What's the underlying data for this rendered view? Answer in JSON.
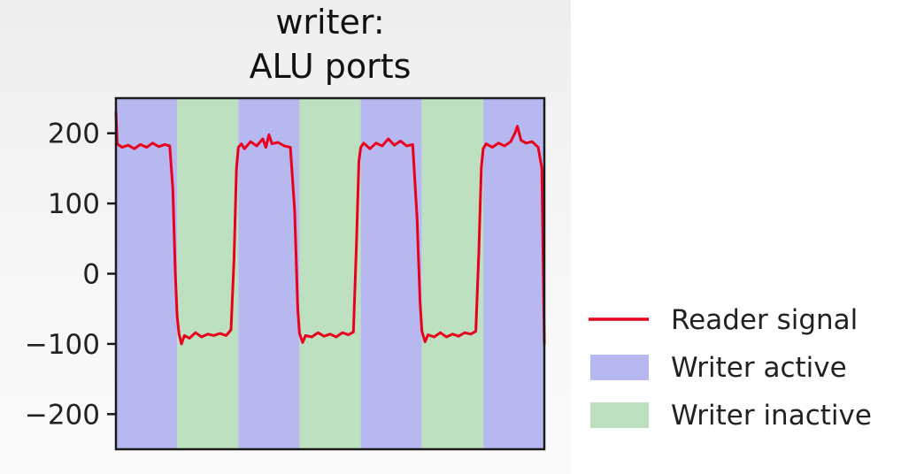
{
  "chart_data": {
    "type": "line",
    "title": [
      "writer:",
      "ALU ports"
    ],
    "xlabel": "",
    "ylabel": "",
    "ylim": [
      -250,
      250
    ],
    "xlim": [
      0,
      7
    ],
    "yticks": [
      200,
      100,
      0,
      -100,
      -200
    ],
    "ytick_labels": [
      "200",
      "100",
      "0",
      "−100",
      "−200"
    ],
    "grid": false,
    "legend_position": "right-bottom",
    "background_bands": [
      {
        "state": "Writer active",
        "start": 0,
        "end": 1
      },
      {
        "state": "Writer inactive",
        "start": 1,
        "end": 2
      },
      {
        "state": "Writer active",
        "start": 2,
        "end": 3
      },
      {
        "state": "Writer inactive",
        "start": 3,
        "end": 4
      },
      {
        "state": "Writer active",
        "start": 4,
        "end": 5
      },
      {
        "state": "Writer inactive",
        "start": 5,
        "end": 6
      },
      {
        "state": "Writer active",
        "start": 6,
        "end": 7
      }
    ],
    "series": [
      {
        "name": "Reader signal",
        "color": "#e8001c",
        "points": [
          [
            0.0,
            230
          ],
          [
            0.02,
            185
          ],
          [
            0.1,
            180
          ],
          [
            0.2,
            183
          ],
          [
            0.3,
            178
          ],
          [
            0.4,
            184
          ],
          [
            0.5,
            180
          ],
          [
            0.6,
            186
          ],
          [
            0.7,
            181
          ],
          [
            0.8,
            184
          ],
          [
            0.88,
            182
          ],
          [
            0.93,
            120
          ],
          [
            0.97,
            0
          ],
          [
            1.0,
            -60
          ],
          [
            1.03,
            -85
          ],
          [
            1.07,
            -100
          ],
          [
            1.12,
            -88
          ],
          [
            1.2,
            -92
          ],
          [
            1.3,
            -84
          ],
          [
            1.4,
            -90
          ],
          [
            1.5,
            -86
          ],
          [
            1.6,
            -88
          ],
          [
            1.7,
            -85
          ],
          [
            1.8,
            -88
          ],
          [
            1.88,
            -80
          ],
          [
            1.93,
            20
          ],
          [
            1.97,
            150
          ],
          [
            2.0,
            180
          ],
          [
            2.05,
            185
          ],
          [
            2.1,
            178
          ],
          [
            2.2,
            188
          ],
          [
            2.3,
            182
          ],
          [
            2.4,
            192
          ],
          [
            2.45,
            180
          ],
          [
            2.5,
            198
          ],
          [
            2.55,
            185
          ],
          [
            2.65,
            187
          ],
          [
            2.75,
            182
          ],
          [
            2.85,
            180
          ],
          [
            2.92,
            90
          ],
          [
            2.97,
            -50
          ],
          [
            3.0,
            -85
          ],
          [
            3.05,
            -98
          ],
          [
            3.1,
            -88
          ],
          [
            3.2,
            -90
          ],
          [
            3.3,
            -84
          ],
          [
            3.4,
            -89
          ],
          [
            3.5,
            -86
          ],
          [
            3.6,
            -90
          ],
          [
            3.7,
            -84
          ],
          [
            3.8,
            -87
          ],
          [
            3.88,
            -83
          ],
          [
            3.93,
            40
          ],
          [
            3.97,
            160
          ],
          [
            4.0,
            180
          ],
          [
            4.05,
            186
          ],
          [
            4.15,
            178
          ],
          [
            4.25,
            186
          ],
          [
            4.35,
            182
          ],
          [
            4.45,
            192
          ],
          [
            4.55,
            183
          ],
          [
            4.65,
            189
          ],
          [
            4.75,
            182
          ],
          [
            4.85,
            184
          ],
          [
            4.92,
            80
          ],
          [
            4.97,
            -40
          ],
          [
            5.0,
            -82
          ],
          [
            5.05,
            -97
          ],
          [
            5.1,
            -87
          ],
          [
            5.2,
            -90
          ],
          [
            5.3,
            -84
          ],
          [
            5.4,
            -90
          ],
          [
            5.5,
            -86
          ],
          [
            5.6,
            -89
          ],
          [
            5.7,
            -84
          ],
          [
            5.8,
            -86
          ],
          [
            5.88,
            -82
          ],
          [
            5.93,
            30
          ],
          [
            5.97,
            150
          ],
          [
            6.0,
            178
          ],
          [
            6.05,
            185
          ],
          [
            6.15,
            180
          ],
          [
            6.25,
            186
          ],
          [
            6.35,
            182
          ],
          [
            6.45,
            188
          ],
          [
            6.52,
            200
          ],
          [
            6.56,
            210
          ],
          [
            6.62,
            190
          ],
          [
            6.7,
            186
          ],
          [
            6.8,
            188
          ],
          [
            6.9,
            180
          ],
          [
            6.96,
            150
          ],
          [
            7.0,
            -100
          ]
        ]
      }
    ],
    "legend": [
      {
        "label": "Reader signal",
        "kind": "line",
        "color": "#e8001c"
      },
      {
        "label": "Writer active",
        "kind": "patch",
        "color": "#b8b8f0"
      },
      {
        "label": "Writer inactive",
        "kind": "patch",
        "color": "#bde0c0"
      }
    ],
    "colors": {
      "active_band": "#b8b8f0",
      "inactive_band": "#bde0c0",
      "line": "#e8001c",
      "axis": "#1a1a1a"
    }
  }
}
